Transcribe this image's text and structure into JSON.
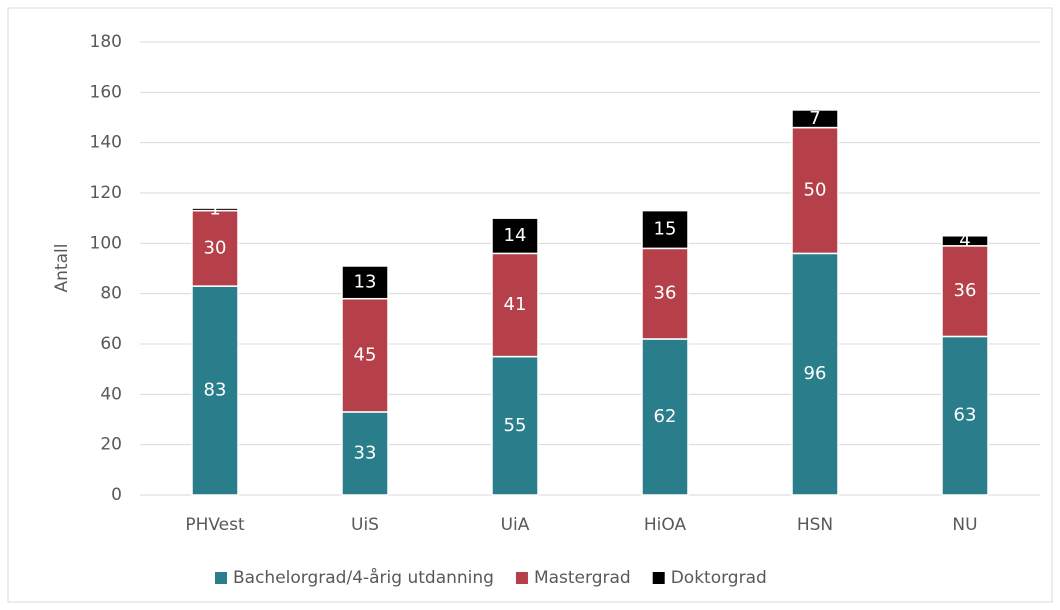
{
  "chart_data": {
    "type": "stacked_bar",
    "y_label": "Antall",
    "categories": [
      "PHVest",
      "UiS",
      "UiA",
      "HiOA",
      "HSN",
      "NU"
    ],
    "series": [
      {
        "name": "Bachelorgrad/4-årig utdanning",
        "color": "#2a7d8b",
        "values": [
          83,
          33,
          55,
          62,
          96,
          63
        ]
      },
      {
        "name": "Mastergrad",
        "color": "#b5404a",
        "values": [
          30,
          45,
          41,
          36,
          50,
          36
        ]
      },
      {
        "name": "Doktorgrad",
        "color": "#000000",
        "values": [
          1,
          13,
          14,
          15,
          7,
          4
        ]
      }
    ],
    "ylim": [
      0,
      180
    ],
    "yticks": [
      0,
      20,
      40,
      60,
      80,
      100,
      120,
      140,
      160,
      180
    ],
    "grid": true,
    "legend": "bottom"
  }
}
